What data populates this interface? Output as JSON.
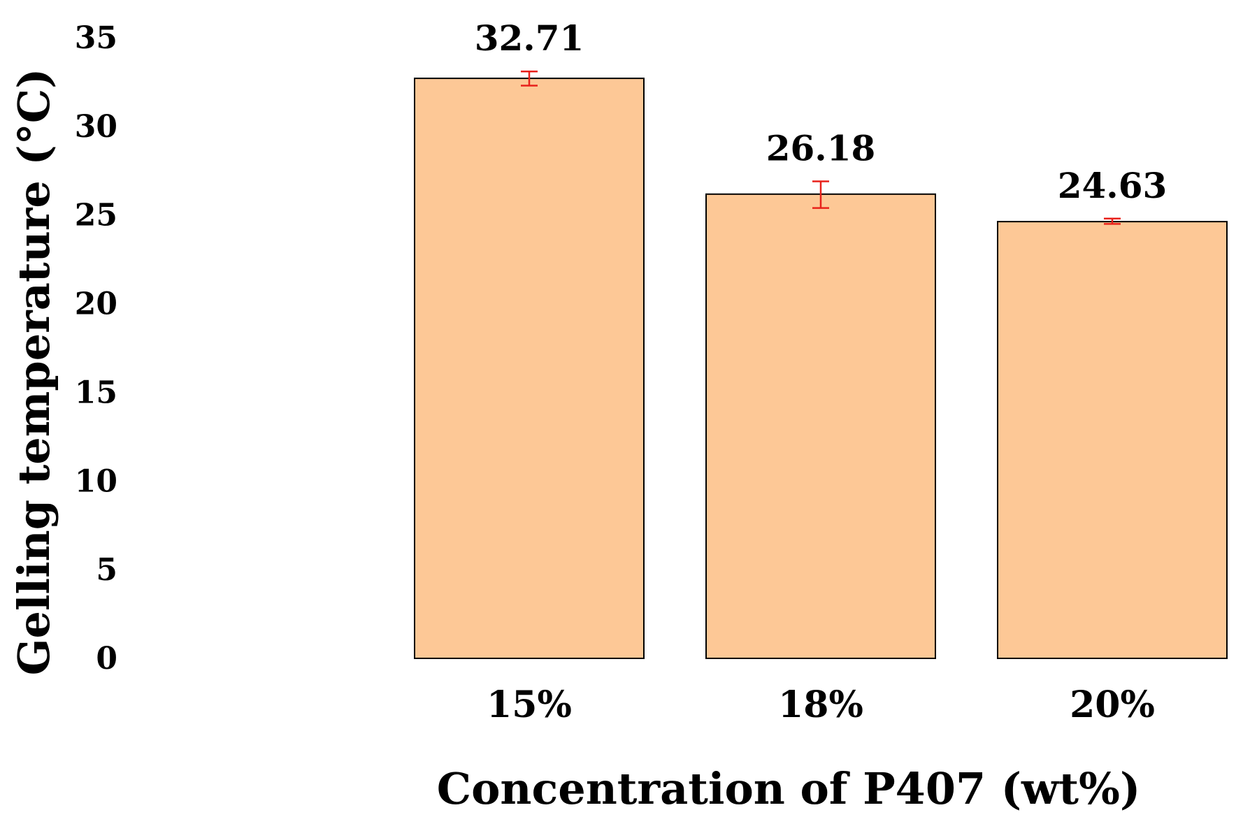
{
  "chart_data": {
    "type": "bar",
    "title": "",
    "xlabel": "Concentration of P407 (wt%)",
    "ylabel": "Gelling temperature (°C)",
    "categories": [
      "15%",
      "18%",
      "20%"
    ],
    "values": [
      32.71,
      26.18,
      24.63
    ],
    "value_labels": [
      "32.71",
      "26.18",
      "24.63"
    ],
    "error_low": [
      32.3,
      25.4,
      24.5
    ],
    "error_high": [
      33.1,
      26.9,
      24.8
    ],
    "ylim": [
      0,
      35
    ],
    "yticks": [
      0,
      5,
      10,
      15,
      20,
      25,
      30,
      35
    ],
    "ytick_labels": [
      "0",
      "5",
      "10",
      "15",
      "20",
      "25",
      "30",
      "35"
    ],
    "grid": false,
    "bar_color": "#FDC896",
    "error_bar_color": "#E8211B"
  }
}
